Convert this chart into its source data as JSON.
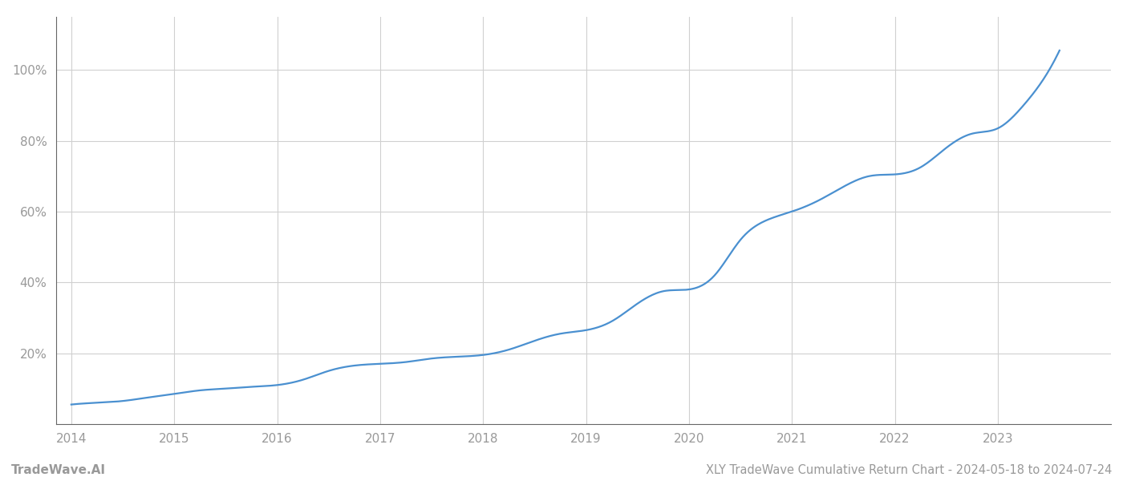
{
  "title": "XLY TradeWave Cumulative Return Chart - 2024-05-18 to 2024-07-24",
  "watermark": "TradeWave.AI",
  "line_color": "#4a90d0",
  "background_color": "#ffffff",
  "grid_color": "#d0d0d0",
  "x_years": [
    2014,
    2015,
    2016,
    2017,
    2018,
    2019,
    2020,
    2021,
    2022,
    2023
  ],
  "data_x": [
    2014.0,
    2014.25,
    2014.5,
    2014.75,
    2015.0,
    2015.25,
    2015.5,
    2015.75,
    2016.0,
    2016.25,
    2016.5,
    2016.75,
    2017.0,
    2017.25,
    2017.5,
    2017.75,
    2018.0,
    2018.25,
    2018.5,
    2018.75,
    2019.0,
    2019.25,
    2019.5,
    2019.75,
    2020.0,
    2020.25,
    2020.5,
    2020.75,
    2021.0,
    2021.25,
    2021.5,
    2021.75,
    2022.0,
    2022.25,
    2022.5,
    2022.75,
    2023.0,
    2023.25,
    2023.5,
    2023.6
  ],
  "data_y": [
    5.5,
    6.0,
    6.5,
    7.5,
    8.5,
    9.5,
    10.0,
    10.5,
    11.0,
    12.5,
    15.0,
    16.5,
    17.0,
    17.5,
    18.5,
    19.0,
    19.5,
    21.0,
    23.5,
    25.5,
    26.5,
    29.0,
    34.0,
    37.5,
    38.0,
    42.0,
    52.0,
    57.5,
    60.0,
    63.0,
    67.0,
    70.0,
    70.5,
    72.5,
    78.0,
    82.0,
    83.5,
    90.0,
    100.0,
    105.5
  ],
  "ylim": [
    0,
    115
  ],
  "yticks": [
    20,
    40,
    60,
    80,
    100
  ],
  "title_fontsize": 10.5,
  "watermark_fontsize": 11,
  "tick_color": "#999999",
  "axis_color": "#666666",
  "tick_fontsize": 11,
  "line_width": 1.6
}
